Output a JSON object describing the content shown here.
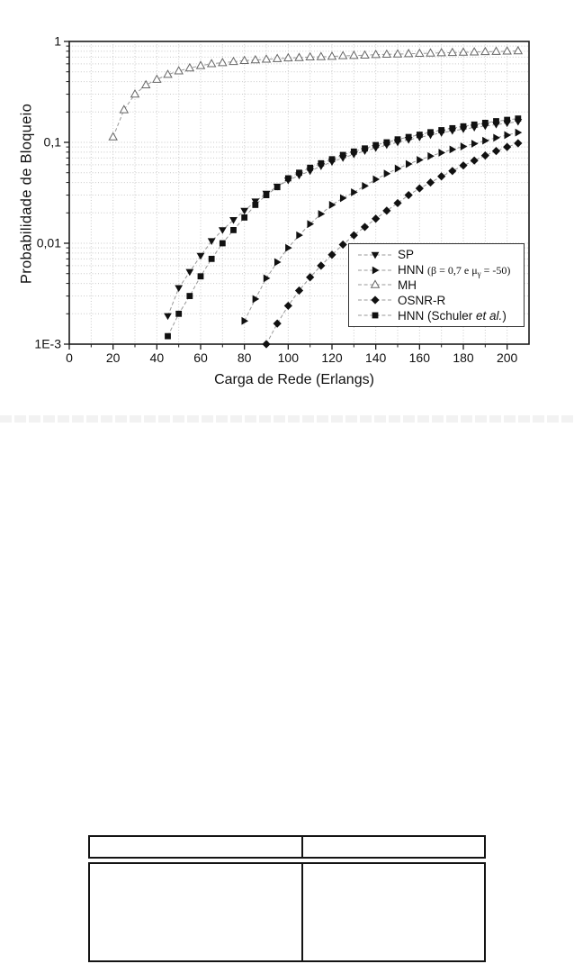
{
  "page": {
    "background": "#ffffff"
  },
  "chart_data": {
    "type": "line",
    "title": "",
    "xlabel": "Carga de Rede (Erlangs)",
    "ylabel": "Probabilidade de Bloqueio",
    "x_axis": {
      "min": 0,
      "max": 210,
      "major_ticks": [
        0,
        20,
        40,
        60,
        80,
        100,
        120,
        140,
        160,
        180,
        200
      ],
      "major_tick_labels": [
        "0",
        "20",
        "40",
        "60",
        "80",
        "100",
        "120",
        "140",
        "160",
        "180",
        "200"
      ],
      "minor_tick_step": 10
    },
    "y_axis": {
      "scale": "log",
      "min": 0.001,
      "max": 1,
      "major_ticks": [
        1,
        0.1,
        0.01,
        0.001
      ],
      "major_tick_labels": [
        "1",
        "0,1",
        "0,01",
        "1E-3"
      ]
    },
    "grid": true,
    "legend_position": "inside lower-right",
    "colors": {
      "axis": "#1a1a1a",
      "grid": "#c9c9c9",
      "series_line": "#999999",
      "marker_fill": "#111111",
      "open_marker_stroke": "#666666",
      "text": "#111111"
    },
    "series": [
      {
        "id": "sp",
        "name": "SP",
        "marker": "triangle-down-filled",
        "legend_parts": [
          {
            "text": "SP",
            "style": "sans"
          }
        ],
        "x": [
          45,
          50,
          55,
          60,
          65,
          70,
          75,
          80,
          85,
          90,
          95,
          100,
          105,
          110,
          115,
          120,
          125,
          130,
          135,
          140,
          145,
          150,
          155,
          160,
          165,
          170,
          175,
          180,
          185,
          190,
          195,
          200,
          205
        ],
        "y": [
          0.0019,
          0.0036,
          0.0052,
          0.0075,
          0.0105,
          0.0135,
          0.017,
          0.021,
          0.026,
          0.031,
          0.0365,
          0.042,
          0.047,
          0.052,
          0.058,
          0.064,
          0.07,
          0.076,
          0.082,
          0.088,
          0.094,
          0.1,
          0.106,
          0.112,
          0.118,
          0.124,
          0.13,
          0.135,
          0.14,
          0.145,
          0.15,
          0.155,
          0.16
        ]
      },
      {
        "id": "hnn-beta",
        "name": "HNN (β = 0,7 e μγ = -50)",
        "marker": "triangle-right-filled",
        "legend_parts": [
          {
            "text": "HNN ",
            "style": "sans"
          },
          {
            "text": "(β = 0,7 e μ",
            "style": "math"
          },
          {
            "text": "γ",
            "style": "math-sub"
          },
          {
            "text": " = -50)",
            "style": "math"
          }
        ],
        "x": [
          80,
          85,
          90,
          95,
          100,
          105,
          110,
          115,
          120,
          125,
          130,
          135,
          140,
          145,
          150,
          155,
          160,
          165,
          170,
          175,
          180,
          185,
          190,
          195,
          200,
          205
        ],
        "y": [
          0.0017,
          0.0028,
          0.0045,
          0.0065,
          0.009,
          0.012,
          0.0155,
          0.0195,
          0.024,
          0.028,
          0.032,
          0.037,
          0.043,
          0.049,
          0.055,
          0.061,
          0.067,
          0.073,
          0.079,
          0.085,
          0.091,
          0.097,
          0.104,
          0.111,
          0.118,
          0.125
        ]
      },
      {
        "id": "mh",
        "name": "MH",
        "marker": "triangle-up-open",
        "legend_parts": [
          {
            "text": "MH",
            "style": "sans"
          }
        ],
        "x": [
          20,
          25,
          30,
          35,
          40,
          45,
          50,
          55,
          60,
          65,
          70,
          75,
          80,
          85,
          90,
          95,
          100,
          105,
          110,
          115,
          120,
          125,
          130,
          135,
          140,
          145,
          150,
          155,
          160,
          165,
          170,
          175,
          180,
          185,
          190,
          195,
          200,
          205
        ],
        "y": [
          0.113,
          0.21,
          0.3,
          0.37,
          0.42,
          0.47,
          0.51,
          0.545,
          0.575,
          0.6,
          0.615,
          0.63,
          0.645,
          0.655,
          0.665,
          0.675,
          0.685,
          0.69,
          0.7,
          0.705,
          0.71,
          0.72,
          0.725,
          0.73,
          0.74,
          0.745,
          0.75,
          0.755,
          0.76,
          0.765,
          0.77,
          0.775,
          0.78,
          0.785,
          0.79,
          0.795,
          0.8,
          0.805
        ]
      },
      {
        "id": "osnr-r",
        "name": "OSNR-R",
        "marker": "diamond-filled",
        "legend_parts": [
          {
            "text": "OSNR-R",
            "style": "sans"
          }
        ],
        "x": [
          90,
          95,
          100,
          105,
          110,
          115,
          120,
          125,
          130,
          135,
          140,
          145,
          150,
          155,
          160,
          165,
          170,
          175,
          180,
          185,
          190,
          195,
          200,
          205
        ],
        "y": [
          0.001,
          0.0016,
          0.0024,
          0.0034,
          0.0046,
          0.006,
          0.0077,
          0.0097,
          0.012,
          0.0145,
          0.0175,
          0.021,
          0.025,
          0.03,
          0.035,
          0.04,
          0.046,
          0.052,
          0.059,
          0.066,
          0.074,
          0.082,
          0.09,
          0.098
        ]
      },
      {
        "id": "hnn-schuler",
        "name": "HNN (Schuler et al.)",
        "marker": "square-filled",
        "legend_parts": [
          {
            "text": "HNN (Schuler ",
            "style": "sans"
          },
          {
            "text": "et al.",
            "style": "sans-italic"
          },
          {
            "text": ")",
            "style": "sans"
          }
        ],
        "x": [
          45,
          50,
          55,
          60,
          65,
          70,
          75,
          80,
          85,
          90,
          95,
          100,
          105,
          110,
          115,
          120,
          125,
          130,
          135,
          140,
          145,
          150,
          155,
          160,
          165,
          170,
          175,
          180,
          185,
          190,
          195,
          200,
          205
        ],
        "y": [
          0.0012,
          0.002,
          0.003,
          0.0047,
          0.007,
          0.01,
          0.0135,
          0.018,
          0.024,
          0.03,
          0.036,
          0.044,
          0.05,
          0.056,
          0.062,
          0.068,
          0.075,
          0.081,
          0.087,
          0.094,
          0.1,
          0.107,
          0.113,
          0.119,
          0.126,
          0.132,
          0.138,
          0.144,
          0.15,
          0.156,
          0.162,
          0.167,
          0.172
        ]
      }
    ]
  },
  "table": {
    "header_cells": [
      "",
      ""
    ],
    "body_cells": [
      "",
      ""
    ]
  }
}
